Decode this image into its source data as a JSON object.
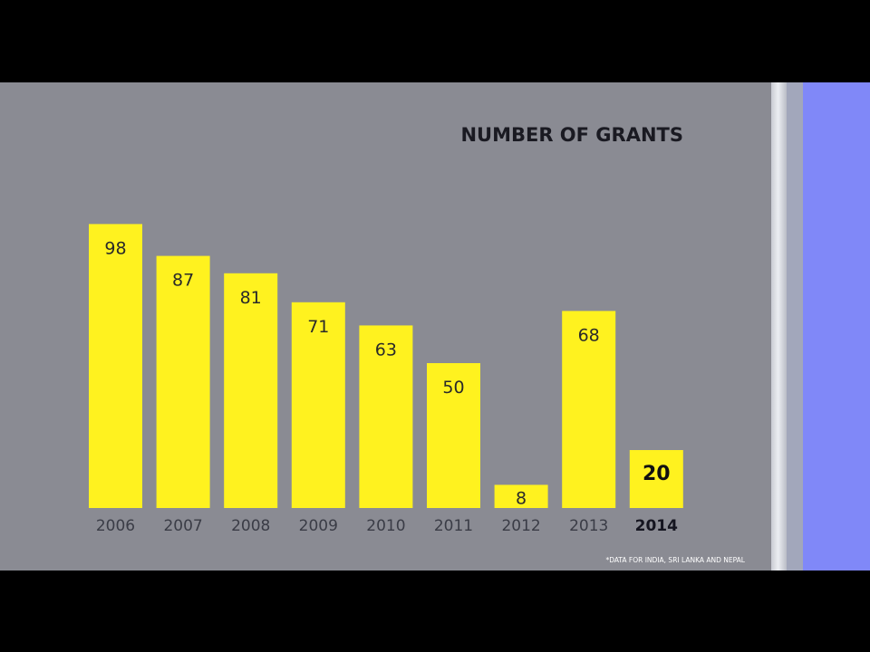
{
  "chart_data": {
    "type": "bar",
    "title": "NUMBER OF GRANTS",
    "categories": [
      "2006",
      "2007",
      "2008",
      "2009",
      "2010",
      "2011",
      "2012",
      "2013",
      "2014"
    ],
    "values": [
      98,
      87,
      81,
      71,
      63,
      50,
      8,
      68,
      20
    ],
    "highlight_category": "2014",
    "ylim": [
      0,
      100
    ],
    "grid": false,
    "footnote": "*DATA FOR INDIA, SRI LANKA AND NEPAL",
    "colors": {
      "bar": "#fff21f",
      "background": "#8a8b93",
      "side_panel": "#8088f8"
    }
  }
}
